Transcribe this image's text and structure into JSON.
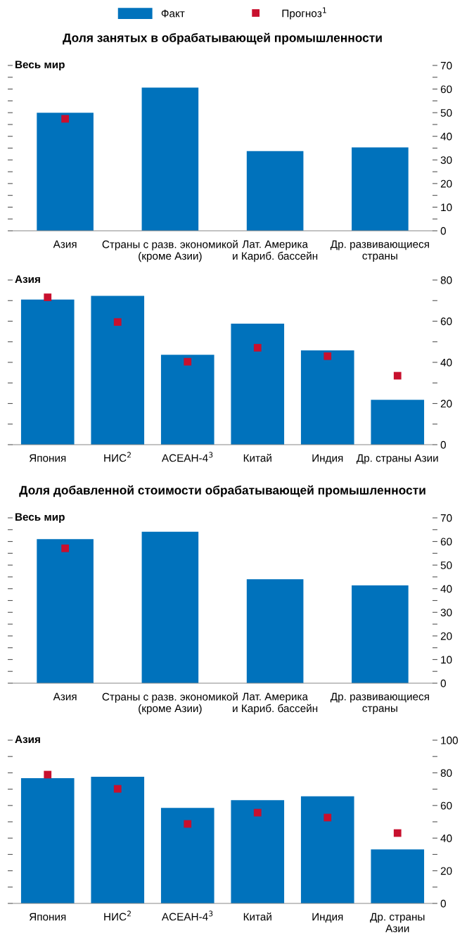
{
  "chart_data": [
    {
      "type": "bar",
      "title": "Доля занятых в обрабатывающей промышленности",
      "subtitle": "Весь мир",
      "legend": "top",
      "categories": [
        "Азия",
        "Страны с разв. экономикой\n(кроме Азии)",
        "Лат. Америка\nи Кариб. бассейн",
        "Др. развивающиеся\nстраны"
      ],
      "series": [
        {
          "name": "Факт",
          "color": "#0072bc",
          "values": [
            50.0,
            60.6,
            33.7,
            35.3
          ]
        },
        {
          "name": "Прогноз$^{1}$",
          "type": "scatter",
          "marker": "square",
          "color": "#c8102e",
          "values": [
            47.4,
            null,
            null,
            null
          ]
        }
      ],
      "ylim": [
        0,
        70
      ],
      "yticks": [
        0,
        {
          "value": 5,
          "label": null
        },
        10,
        {
          "value": 15,
          "label": null
        },
        20,
        {
          "value": 25,
          "label": null
        },
        30,
        {
          "value": 35,
          "label": null
        },
        40,
        {
          "value": 45,
          "label": null
        },
        50,
        {
          "value": 55,
          "label": null
        },
        60,
        {
          "value": 65,
          "label": null
        },
        70
      ]
    },
    {
      "type": "bar",
      "subtitle": "Азия",
      "categories": [
        "Япония",
        "НИС$^{2}$",
        "АСЕАН-4$^{3}$",
        "Китай",
        "Индия",
        "Др. страны Азии"
      ],
      "series": [
        {
          "color": "#0072bc",
          "values": [
            70.5,
            72.3,
            43.7,
            58.8,
            45.8,
            21.8
          ]
        },
        {
          "type": "scatter",
          "marker": "square",
          "color": "#c8102e",
          "values": [
            71.6,
            59.6,
            40.3,
            47.1,
            43.0,
            33.5
          ]
        }
      ],
      "ylim": [
        0,
        80
      ],
      "yticks": [
        0,
        {
          "value": 10,
          "label": null
        },
        20,
        {
          "value": 30,
          "label": null
        },
        40,
        {
          "value": 50,
          "label": null
        },
        60,
        {
          "value": 70,
          "label": null
        },
        80
      ]
    },
    {
      "type": "bar",
      "title": "Доля добавленной стоимости обрабатывающей промышленности",
      "subtitle": "Весь мир",
      "categories": [
        "Азия",
        "Страны с разв. экономикой\n(кроме Азии)",
        "Лат. Америка\nи Кариб. бассейн",
        "Др. развивающиеся\nстраны"
      ],
      "series": [
        {
          "color": "#0072bc",
          "values": [
            61.0,
            64.1,
            44.0,
            41.4
          ]
        },
        {
          "type": "scatter",
          "marker": "square",
          "color": "#c8102e",
          "values": [
            57.1,
            null,
            null,
            null
          ]
        }
      ],
      "ylim": [
        0,
        70
      ],
      "yticks": [
        0,
        {
          "value": 5,
          "label": null
        },
        10,
        {
          "value": 15,
          "label": null
        },
        20,
        {
          "value": 25,
          "label": null
        },
        30,
        {
          "value": 35,
          "label": null
        },
        40,
        {
          "value": 45,
          "label": null
        },
        50,
        {
          "value": 55,
          "label": null
        },
        60,
        {
          "value": 65,
          "label": null
        },
        70
      ]
    },
    {
      "type": "bar",
      "subtitle": "Азия",
      "categories": [
        "Япония",
        "НИС$^{2}$",
        "АСЕАН-4$^{3}$",
        "Китай",
        "Индия",
        "Др. страны\nАзии"
      ],
      "series": [
        {
          "color": "#0072bc",
          "values": [
            76.7,
            77.6,
            58.5,
            63.3,
            65.6,
            33.1
          ]
        },
        {
          "type": "scatter",
          "marker": "square",
          "color": "#c8102e",
          "values": [
            78.9,
            70.2,
            48.7,
            55.6,
            52.6,
            43.1
          ]
        }
      ],
      "ylim": [
        0,
        100
      ],
      "yticks": [
        0,
        {
          "value": 10,
          "label": null
        },
        20,
        {
          "value": 30,
          "label": null
        },
        40,
        {
          "value": 50,
          "label": null
        },
        60,
        {
          "value": 70,
          "label": null
        },
        80,
        {
          "value": 90,
          "label": null
        },
        100
      ]
    }
  ]
}
